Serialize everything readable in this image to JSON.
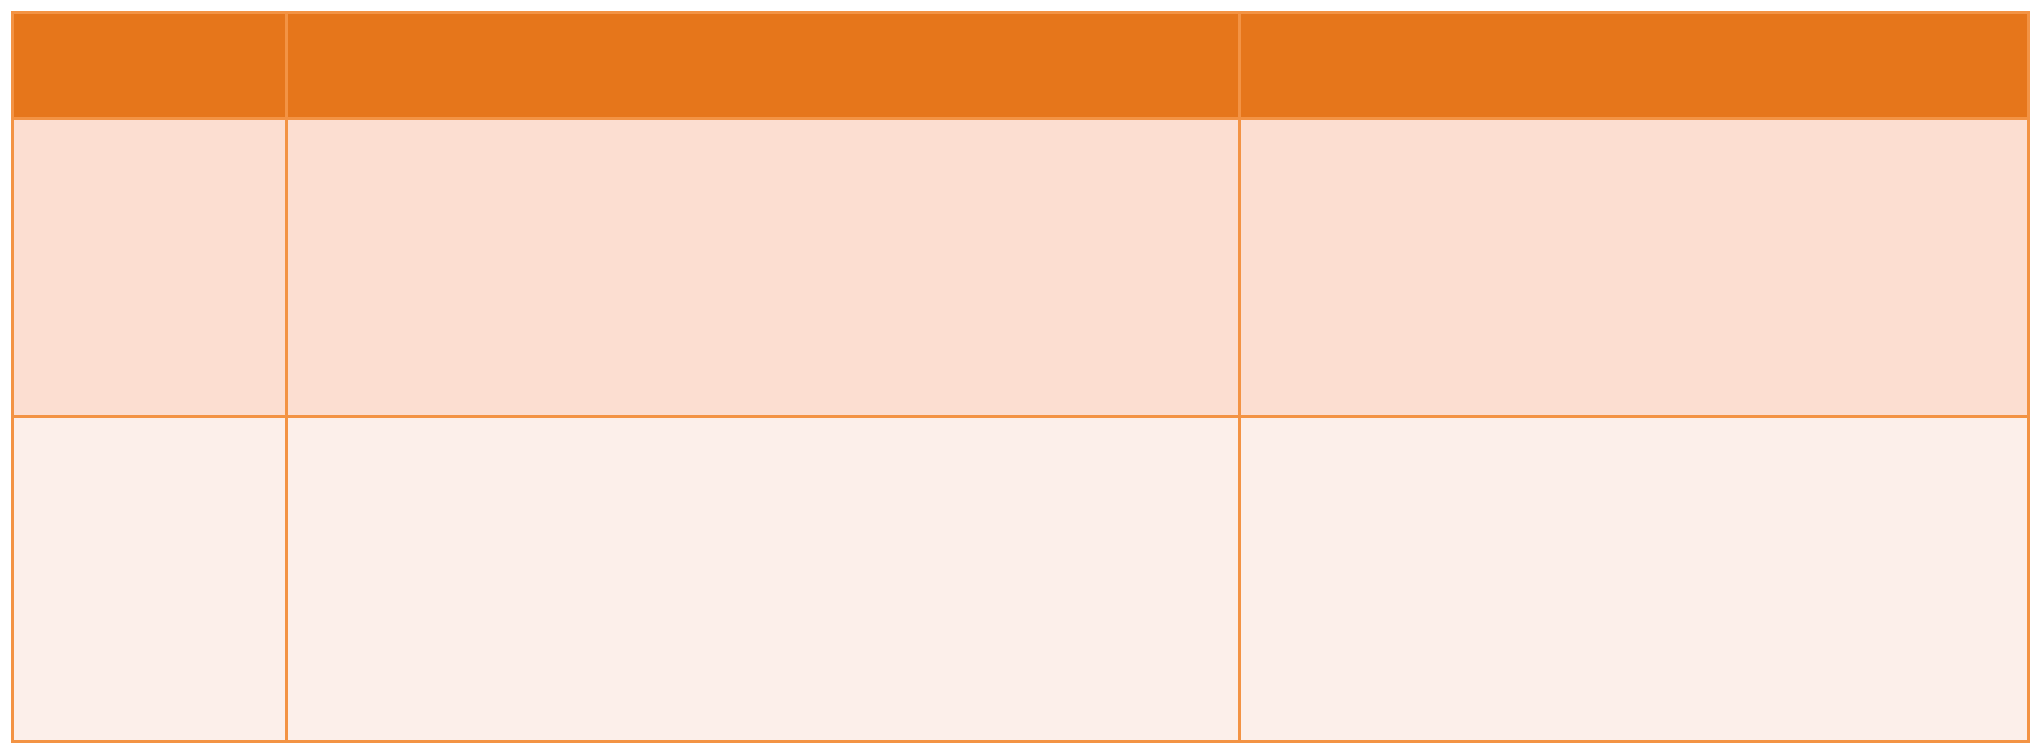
{
  "table": {
    "colors": {
      "header": "#e6761b",
      "row_odd": "#fcded1",
      "row_even": "#fcefea",
      "border": "#f39344"
    },
    "headers": [
      "",
      "",
      ""
    ],
    "rows": [
      [
        "",
        "",
        ""
      ],
      [
        "",
        "",
        ""
      ]
    ]
  }
}
